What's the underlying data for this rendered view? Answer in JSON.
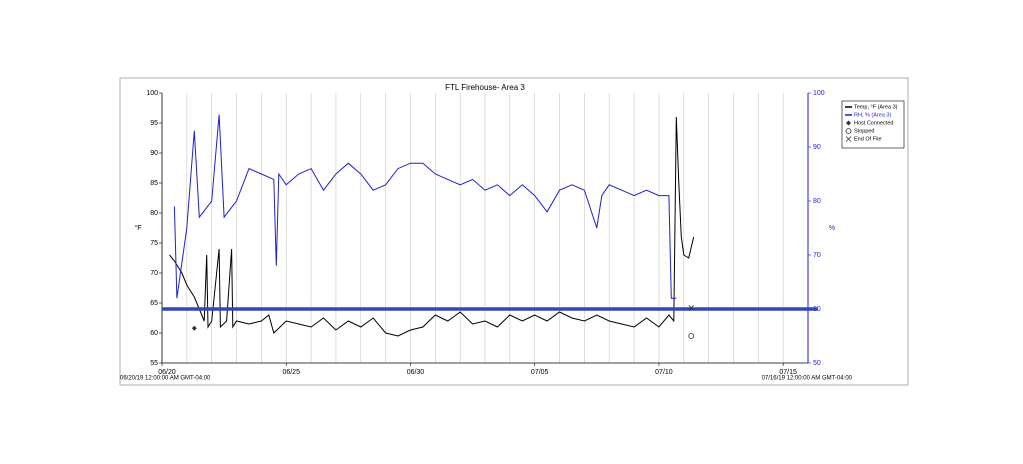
{
  "chart_data": {
    "type": "line",
    "title": "FTL Firehouse- Area 3",
    "y_label": "°F",
    "y2_label": "%",
    "x_range_labels": [
      "06/20/19 12:00:00 AM GMT-04:00",
      "07/16/19 12:00:00 AM GMT-04:00"
    ],
    "xlim": [
      0,
      26
    ],
    "xticks": [
      {
        "value": 0,
        "label": "06/20"
      },
      {
        "value": 5,
        "label": "06/25"
      },
      {
        "value": 10,
        "label": "06/30"
      },
      {
        "value": 15,
        "label": "07/05"
      },
      {
        "value": 20,
        "label": "07/10"
      },
      {
        "value": 25,
        "label": "07/15"
      }
    ],
    "xgrid_step": 1,
    "ylim": [
      55,
      100
    ],
    "yticks": [
      55,
      60,
      65,
      70,
      75,
      80,
      85,
      90,
      95,
      100
    ],
    "y2lim": [
      50,
      100
    ],
    "y2ticks": [
      50,
      60,
      70,
      80,
      90,
      100
    ],
    "grid": true,
    "hline": {
      "value": 60,
      "axis": "y2",
      "color": "#3347b8"
    },
    "series": [
      {
        "name": "Temp, °F (Area 3)",
        "color": "#000000",
        "x": [
          0.3,
          0.5,
          0.8,
          1.0,
          1.3,
          1.5,
          1.7,
          1.8,
          1.85,
          2.0,
          2.3,
          2.35,
          2.6,
          2.8,
          2.85,
          3.0,
          3.5,
          4.0,
          4.3,
          4.5,
          5.0,
          5.5,
          6.0,
          6.5,
          7.0,
          7.5,
          8.0,
          8.5,
          9.0,
          9.5,
          10.0,
          10.5,
          11.0,
          11.5,
          12.0,
          12.5,
          13.0,
          13.5,
          14.0,
          14.5,
          15.0,
          15.5,
          16.0,
          16.5,
          17.0,
          17.5,
          18.0,
          18.5,
          19.0,
          19.5,
          20.0,
          20.4,
          20.6,
          20.7,
          20.8,
          20.9,
          21.0,
          21.2,
          21.4
        ],
        "values": [
          73,
          72,
          70,
          68,
          66,
          64,
          62,
          73,
          61,
          62,
          74,
          61,
          62,
          74,
          61,
          62,
          61.5,
          62,
          63,
          60,
          62,
          61.5,
          61,
          62.5,
          60.5,
          62,
          61,
          62.5,
          60,
          59.5,
          60.5,
          61,
          63,
          62,
          63.5,
          61.5,
          62,
          61,
          63,
          62,
          63,
          62,
          63.5,
          62.5,
          62,
          63,
          62,
          61.5,
          61,
          62.5,
          61,
          63,
          62,
          96,
          85,
          76,
          73,
          72.5,
          76
        ]
      },
      {
        "name": "RH, % (Area 3)",
        "color": "#1f1fd0",
        "axis": "y2",
        "x": [
          0.5,
          0.6,
          1.0,
          1.3,
          1.5,
          2.0,
          2.3,
          2.5,
          3.0,
          3.5,
          4.0,
          4.5,
          4.6,
          4.7,
          5.0,
          5.5,
          6.0,
          6.5,
          7.0,
          7.5,
          8.0,
          8.5,
          9.0,
          9.5,
          10.0,
          10.5,
          11.0,
          11.5,
          12.0,
          12.5,
          13.0,
          13.5,
          14.0,
          14.5,
          15.0,
          15.5,
          16.0,
          16.5,
          17.0,
          17.5,
          17.7,
          18.0,
          18.5,
          19.0,
          19.5,
          20.0,
          20.4,
          20.5,
          20.7
        ],
        "values": [
          79,
          62,
          75,
          93,
          77,
          80,
          96,
          77,
          80,
          86,
          85,
          84,
          68,
          85,
          83,
          85,
          86,
          82,
          85,
          87,
          85,
          82,
          83,
          86,
          87,
          87,
          85,
          84,
          83,
          84,
          82,
          83,
          81,
          83,
          81,
          78,
          82,
          83,
          82,
          75,
          81,
          83,
          82,
          81,
          82,
          81,
          81,
          62,
          62
        ]
      }
    ],
    "events": [
      {
        "name": "Host Connected",
        "symbol": "diamond",
        "x": 1.3,
        "y": 60.8
      },
      {
        "name": "Stopped",
        "symbol": "circle",
        "x": 21.3,
        "y": 59.5
      },
      {
        "name": "End Of File",
        "symbol": "cross",
        "x": 21.3,
        "y": 64.2
      }
    ],
    "legend": "right"
  }
}
